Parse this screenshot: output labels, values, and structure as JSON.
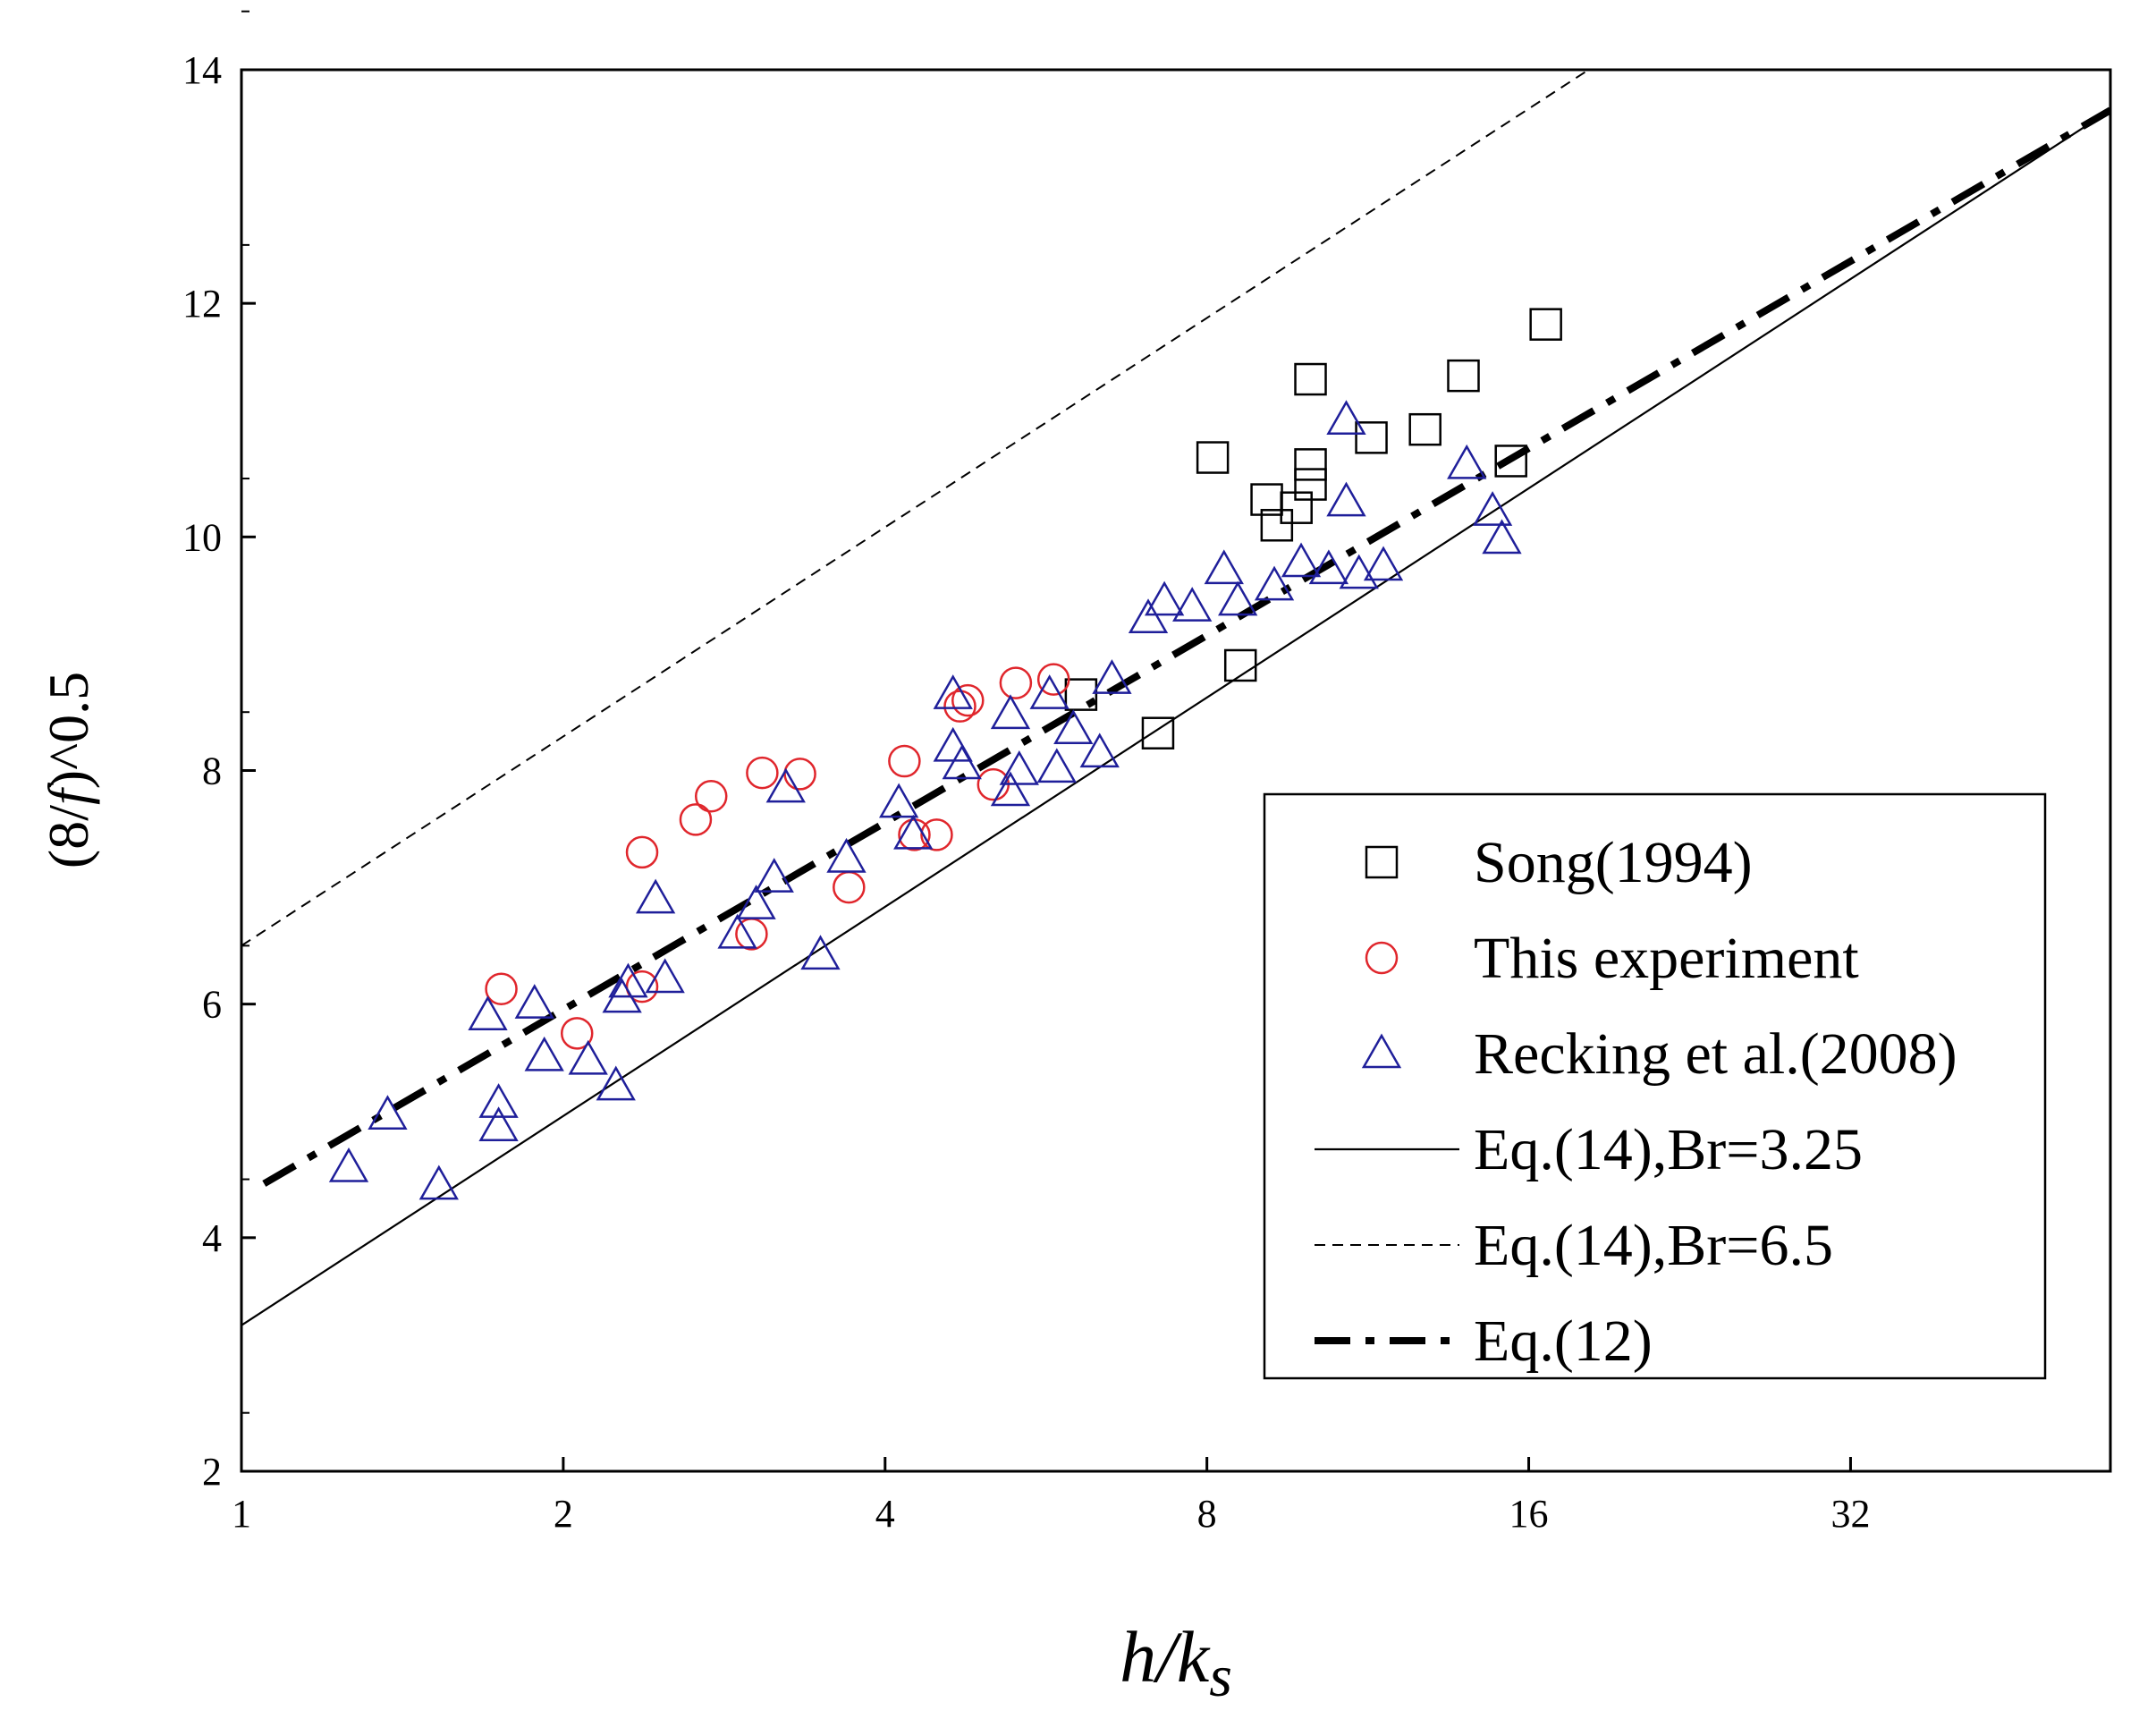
{
  "chart_data": {
    "type": "scatter",
    "title": "",
    "xlabel": "h/k_s",
    "ylabel": "(8/f)^0.5",
    "x_scale": "log2",
    "xlim": [
      1,
      56
    ],
    "ylim": [
      2,
      14
    ],
    "x_ticks": [
      1,
      2,
      4,
      8,
      16,
      32
    ],
    "x_tick_labels": [
      "1",
      "2",
      "4",
      "8",
      "16",
      "32"
    ],
    "y_ticks": [
      2,
      4,
      6,
      8,
      10,
      12,
      14
    ],
    "y_tick_labels": [
      "2",
      "4",
      "6",
      "8",
      "10",
      "12",
      "14"
    ],
    "grid": false,
    "legend_position": "lower-right",
    "series": [
      {
        "name": "Song(1994)",
        "marker": "square",
        "color": "#000000",
        "points": [
          [
            6.1,
            8.65
          ],
          [
            7.2,
            8.32
          ],
          [
            8.1,
            10.68
          ],
          [
            8.6,
            8.9
          ],
          [
            9.1,
            10.32
          ],
          [
            9.3,
            10.1
          ],
          [
            9.7,
            10.25
          ],
          [
            10.0,
            11.35
          ],
          [
            10.0,
            10.62
          ],
          [
            10.0,
            10.45
          ],
          [
            11.4,
            10.85
          ],
          [
            12.8,
            10.92
          ],
          [
            13.9,
            11.38
          ],
          [
            15.4,
            10.65
          ],
          [
            16.6,
            11.82
          ]
        ]
      },
      {
        "name": "This experiment",
        "marker": "circle",
        "color": "#e0262c",
        "points": [
          [
            1.75,
            6.13
          ],
          [
            2.06,
            5.75
          ],
          [
            2.37,
            7.3
          ],
          [
            2.37,
            6.15
          ],
          [
            2.66,
            7.58
          ],
          [
            2.75,
            7.78
          ],
          [
            3.07,
            7.98
          ],
          [
            3.0,
            6.6
          ],
          [
            3.33,
            7.97
          ],
          [
            3.7,
            7.0
          ],
          [
            4.17,
            8.08
          ],
          [
            4.26,
            7.45
          ],
          [
            4.47,
            7.45
          ],
          [
            4.7,
            8.55
          ],
          [
            4.78,
            8.6
          ],
          [
            5.05,
            7.88
          ],
          [
            5.3,
            8.75
          ],
          [
            5.75,
            8.78
          ]
        ]
      },
      {
        "name": "Recking et al.(2008)",
        "marker": "triangle",
        "color": "#1f1f9a",
        "points": [
          [
            1.26,
            4.6
          ],
          [
            1.37,
            5.05
          ],
          [
            1.53,
            4.45
          ],
          [
            1.7,
            5.9
          ],
          [
            1.74,
            5.15
          ],
          [
            1.74,
            4.95
          ],
          [
            1.88,
            6.0
          ],
          [
            1.92,
            5.55
          ],
          [
            2.11,
            5.52
          ],
          [
            2.24,
            5.3
          ],
          [
            2.27,
            6.05
          ],
          [
            2.3,
            6.18
          ],
          [
            2.44,
            6.9
          ],
          [
            2.49,
            6.22
          ],
          [
            2.91,
            6.6
          ],
          [
            3.03,
            6.85
          ],
          [
            3.15,
            7.08
          ],
          [
            3.23,
            7.85
          ],
          [
            3.48,
            6.42
          ],
          [
            3.68,
            7.25
          ],
          [
            4.12,
            7.72
          ],
          [
            4.25,
            7.45
          ],
          [
            4.63,
            8.65
          ],
          [
            4.63,
            8.2
          ],
          [
            4.72,
            8.05
          ],
          [
            5.24,
            8.48
          ],
          [
            5.24,
            7.82
          ],
          [
            5.34,
            8.0
          ],
          [
            5.7,
            8.65
          ],
          [
            5.79,
            8.02
          ],
          [
            6.0,
            8.35
          ],
          [
            6.35,
            8.15
          ],
          [
            6.52,
            8.78
          ],
          [
            7.05,
            9.3
          ],
          [
            7.3,
            9.45
          ],
          [
            7.75,
            9.4
          ],
          [
            8.3,
            9.72
          ],
          [
            8.55,
            9.45
          ],
          [
            9.25,
            9.58
          ],
          [
            9.8,
            9.78
          ],
          [
            10.4,
            9.72
          ],
          [
            10.8,
            11.0
          ],
          [
            10.8,
            10.3
          ],
          [
            11.1,
            9.68
          ],
          [
            11.7,
            9.75
          ],
          [
            14.0,
            10.62
          ],
          [
            14.8,
            10.22
          ],
          [
            15.1,
            9.98
          ]
        ]
      }
    ],
    "lines": [
      {
        "name": "Eq.(14),Br=3.25",
        "style": "solid",
        "intercept": 3.25,
        "slope_per_octave": 1.7916
      },
      {
        "name": "Eq.(14),Br=6.5",
        "style": "dashed",
        "intercept": 6.5,
        "slope_per_octave": 1.7916
      },
      {
        "name": "Eq.(12)",
        "style": "dash-dot",
        "intercept": 4.35,
        "slope_per_octave": 1.6021
      }
    ],
    "legend": [
      {
        "label": "Song(1994)",
        "symbol": "square"
      },
      {
        "label": "This experiment",
        "symbol": "circle"
      },
      {
        "label": "Recking et al.(2008)",
        "symbol": "triangle"
      },
      {
        "label": "Eq.(14),Br=3.25",
        "symbol": "solid"
      },
      {
        "label": "Eq.(14),Br=6.5",
        "symbol": "dashed"
      },
      {
        "label": "Eq.(12)",
        "symbol": "dash-dot"
      }
    ]
  }
}
